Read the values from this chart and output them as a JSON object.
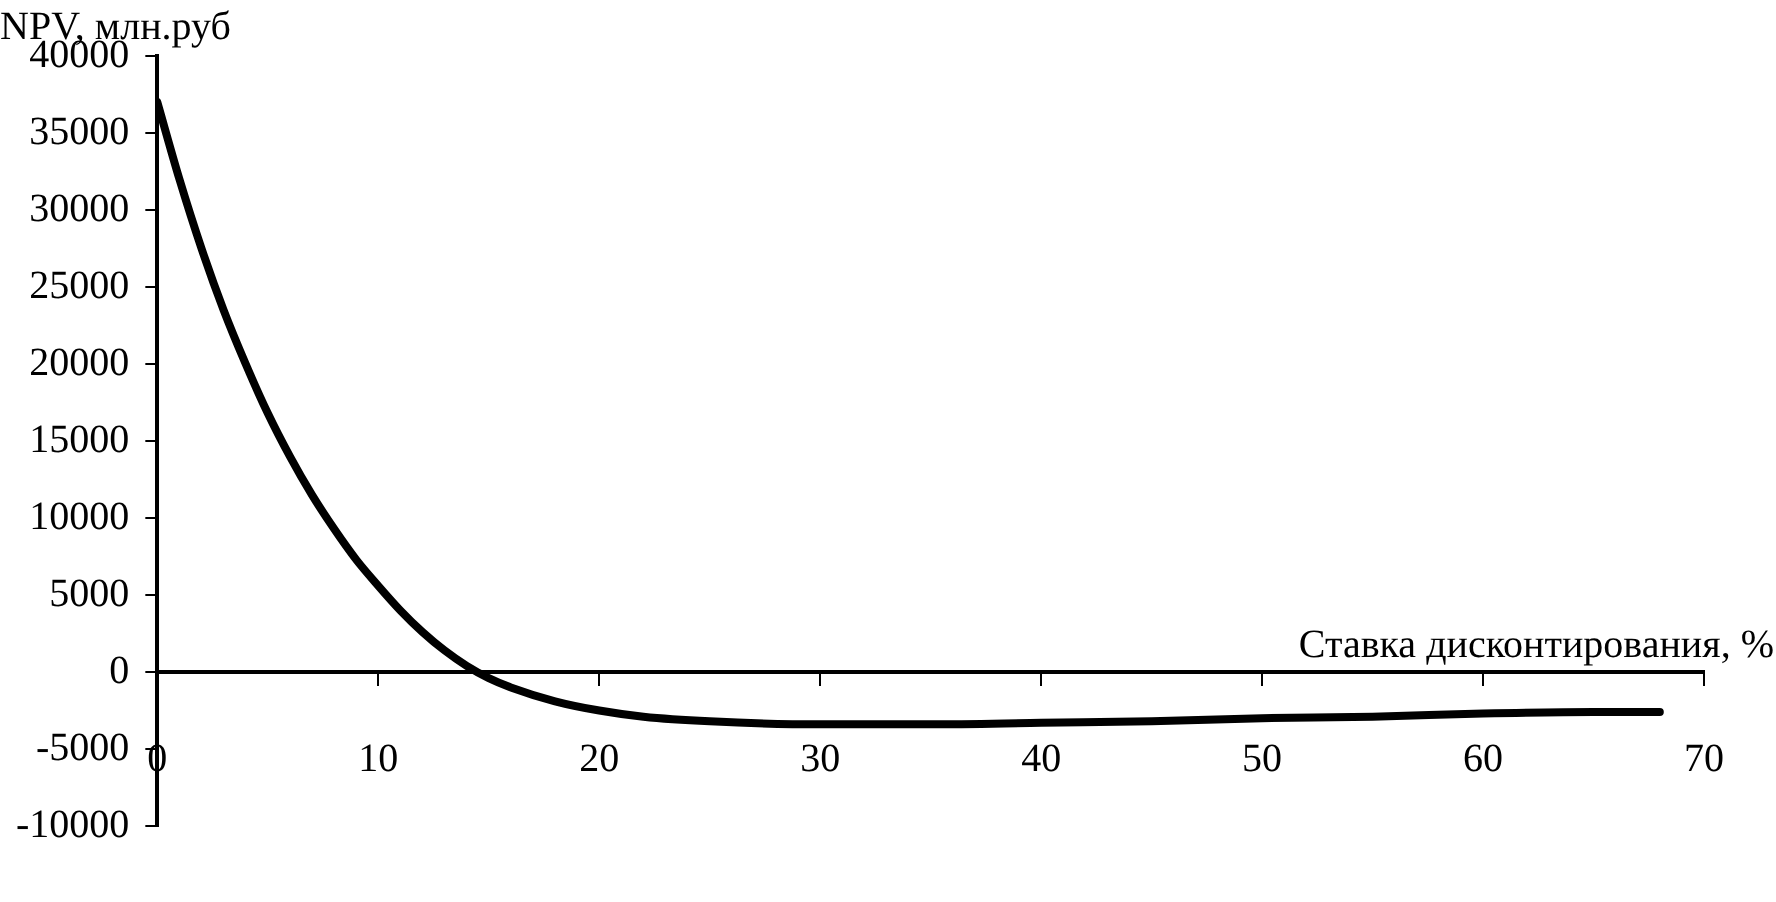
{
  "chart_data": {
    "type": "line",
    "xlabel": "Ставка дисконтирования, %",
    "ylabel": "NPV, млн.руб",
    "x": [
      0,
      1,
      2,
      3,
      4,
      5,
      6,
      7,
      8,
      9,
      10,
      11,
      12,
      13,
      14,
      15,
      16,
      18,
      20,
      22,
      25,
      30,
      35,
      40,
      45,
      50,
      55,
      60,
      65,
      68
    ],
    "series": [
      {
        "color": "#000000",
        "values": [
          37000,
          32000,
          27500,
          23500,
          20000,
          16800,
          14000,
          11500,
          9300,
          7300,
          5600,
          4000,
          2600,
          1400,
          400,
          -400,
          -1000,
          -1900,
          -2500,
          -2900,
          -3200,
          -3400,
          -3400,
          -3300,
          -3200,
          -3000,
          -2900,
          -2700,
          -2600,
          -2600
        ]
      }
    ],
    "xlim": [
      0,
      70
    ],
    "xticks": [
      0,
      10,
      20,
      30,
      40,
      50,
      60,
      70
    ],
    "ylim": [
      -10000,
      40000
    ],
    "yticks": [
      -10000,
      -5000,
      0,
      5000,
      10000,
      15000,
      20000,
      25000,
      30000,
      35000,
      40000
    ],
    "grid": false,
    "legend": false,
    "marker": "none",
    "line_style": "solid"
  }
}
